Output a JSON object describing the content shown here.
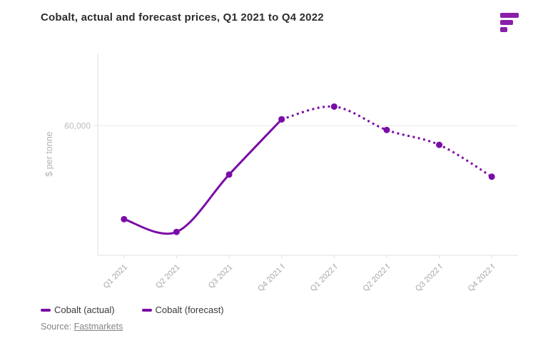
{
  "title": "Cobalt, actual and forecast prices, Q1 2021 to Q4 2022",
  "logo": {
    "name": "fastmarkets-logo",
    "color": "#8a1fa8"
  },
  "colors": {
    "accent_purple": "#7a0da6",
    "axis_line": "#e0e0e0",
    "gridline": "#e9e9e9",
    "tick_text": "#a6a6a6",
    "ytick_text": "#bdbdbd"
  },
  "chart_data": {
    "type": "line",
    "title": "Cobalt, actual and forecast prices, Q1 2021 to Q4 2022",
    "categories": [
      "Q1 2021",
      "Q2 2021",
      "Q3 2021",
      "Q4 2021 f",
      "Q1 2022 f",
      "Q2 2022 f",
      "Q3 2022 f",
      "Q4 2022 f"
    ],
    "series": [
      {
        "name": "Cobalt (actual)",
        "style": "solid",
        "color": "#7a0da6",
        "values": [
          38000,
          35000,
          48500,
          61500,
          null,
          null,
          null,
          null
        ]
      },
      {
        "name": "Cobalt (forecast)",
        "style": "dashed",
        "color": "#7a0da6",
        "values": [
          null,
          null,
          null,
          61500,
          64500,
          59000,
          55500,
          48000
        ]
      }
    ],
    "xlabel": "",
    "ylabel": "$ per tonne",
    "ylim": [
      29500,
      77000
    ],
    "yticks": [
      {
        "value": 60000,
        "label": "60,000"
      }
    ],
    "grid": "horizontal-at-yticks",
    "legend_position": "bottom-left"
  },
  "source": {
    "prefix": "Source: ",
    "link_text": "Fastmarkets"
  }
}
